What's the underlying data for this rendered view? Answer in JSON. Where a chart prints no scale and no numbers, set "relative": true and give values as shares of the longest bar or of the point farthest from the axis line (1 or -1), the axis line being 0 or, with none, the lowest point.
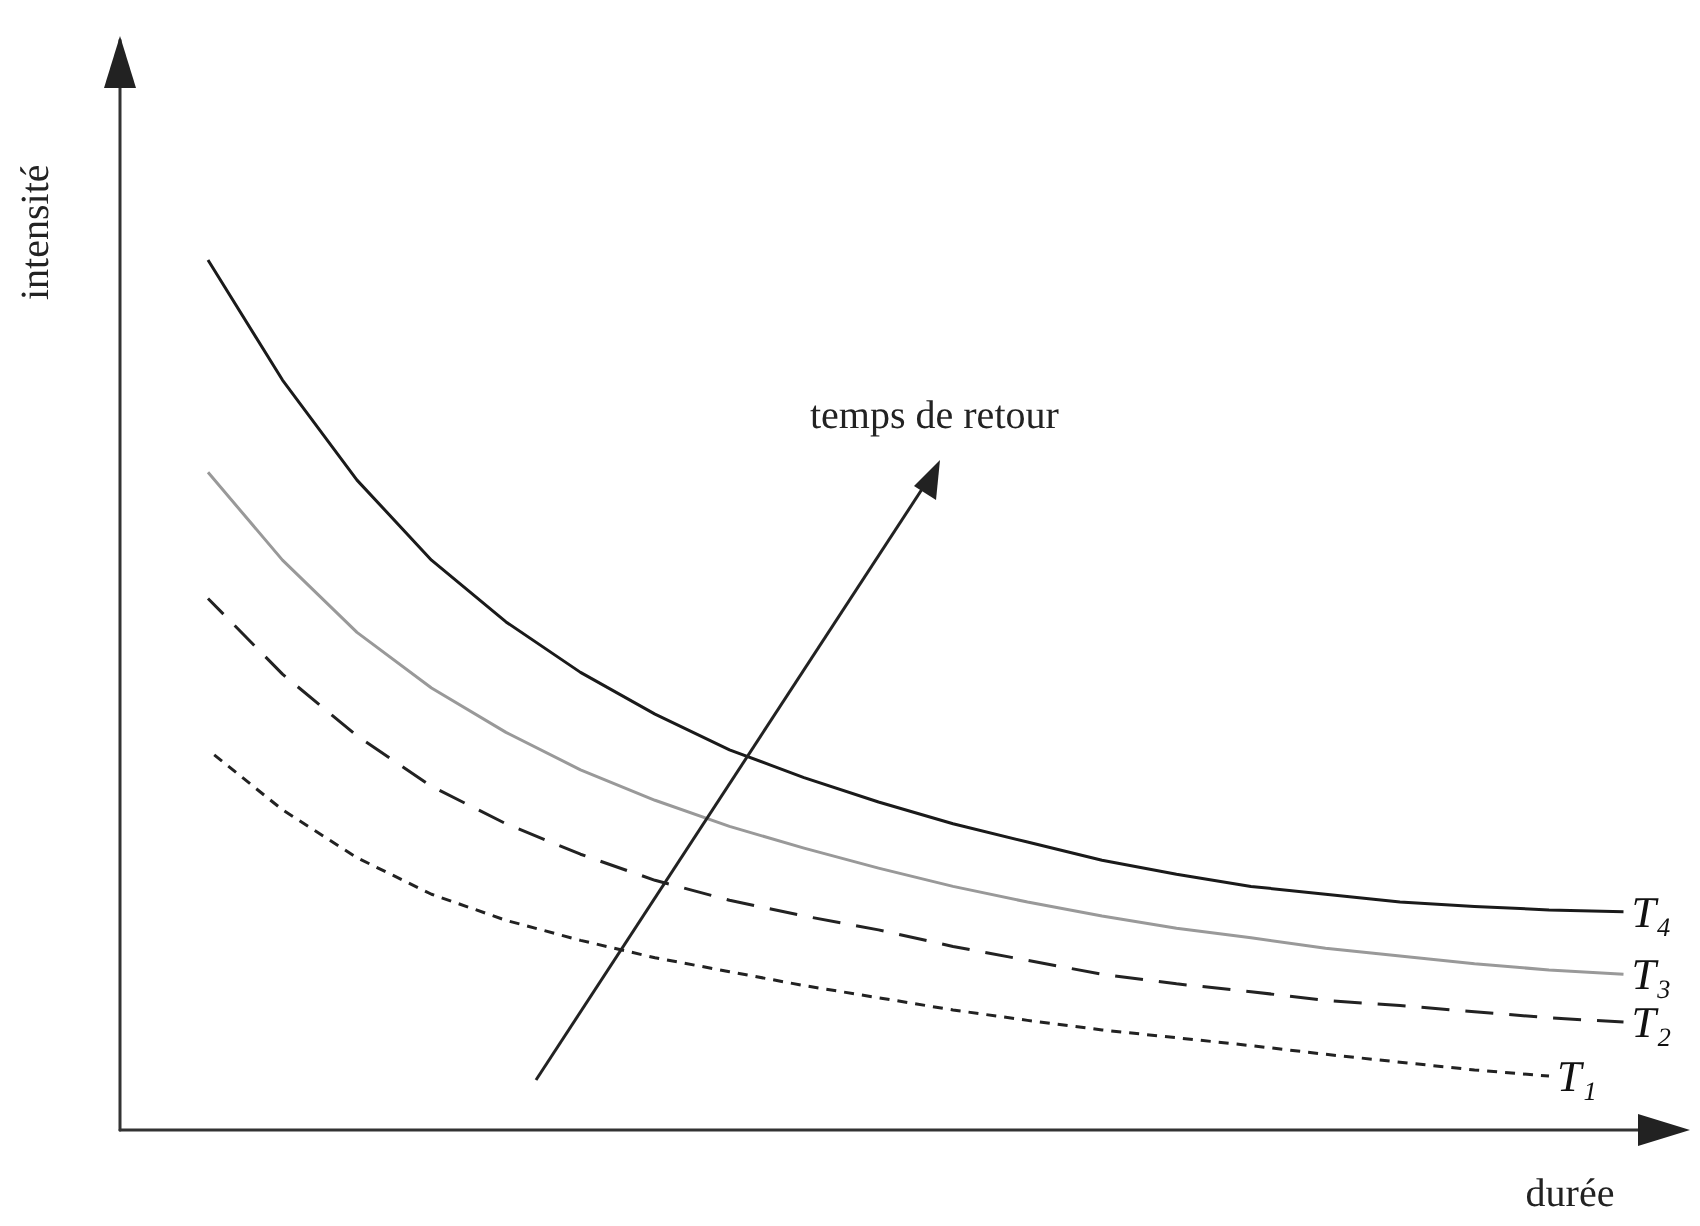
{
  "chart_data": {
    "type": "line",
    "relative": true,
    "xlabel": "durée",
    "ylabel": "intensité",
    "annotations": [
      "temps de retour"
    ],
    "grid": false,
    "legend": false,
    "marker": "none",
    "categories": [
      null,
      null,
      null,
      null,
      null,
      null,
      null,
      null,
      null,
      null,
      null,
      null,
      null,
      null,
      null,
      null,
      null,
      null,
      null,
      null
    ],
    "series": [
      {
        "name": "T₁",
        "color": "#222222",
        "line_style": "dotted",
        "values": [
          0.437,
          0.368,
          0.313,
          0.271,
          0.241,
          0.218,
          0.198,
          0.182,
          0.166,
          0.152,
          0.138,
          0.126,
          0.115,
          0.106,
          0.097,
          0.087,
          0.078,
          0.069,
          0.062,
          null
        ]
      },
      {
        "name": "T₂",
        "color": "#222222",
        "line_style": "dashed",
        "values": [
          0.611,
          0.524,
          0.453,
          0.395,
          0.352,
          0.317,
          0.287,
          0.264,
          0.246,
          0.23,
          0.211,
          0.195,
          0.179,
          0.168,
          0.159,
          0.149,
          0.143,
          0.136,
          0.129,
          0.124
        ]
      },
      {
        "name": "T₃",
        "color": "#999999",
        "line_style": "solid",
        "values": [
          0.756,
          0.655,
          0.572,
          0.508,
          0.457,
          0.414,
          0.379,
          0.349,
          0.324,
          0.301,
          0.28,
          0.262,
          0.246,
          0.232,
          0.221,
          0.209,
          0.2,
          0.191,
          0.184,
          0.179
        ]
      },
      {
        "name": "T₄",
        "color": "#1a1a1a",
        "line_style": "solid",
        "values": [
          1,
          0.862,
          0.747,
          0.655,
          0.584,
          0.526,
          0.478,
          0.437,
          0.405,
          0.377,
          0.352,
          0.331,
          0.31,
          0.294,
          0.28,
          0.271,
          0.262,
          0.257,
          0.253,
          0.251
        ]
      }
    ]
  }
}
